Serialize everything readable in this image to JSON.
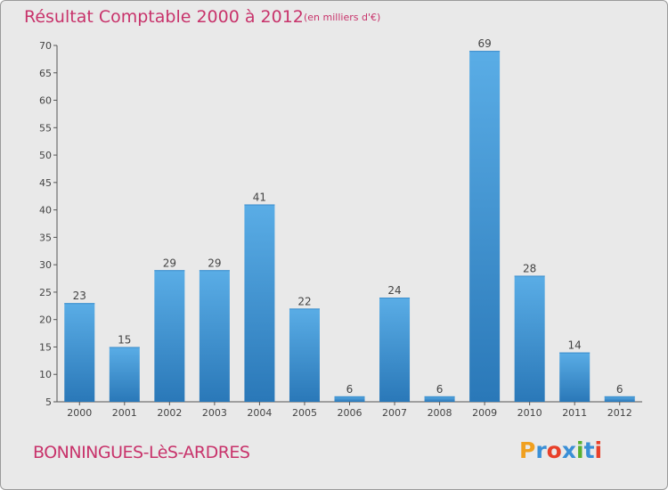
{
  "title": "Résultat Comptable 2000 à 2012",
  "subtitle": "(en milliers d'€)",
  "city": "BONNINGUES-LèS-ARDRES",
  "logo": {
    "letters": [
      "P",
      "r",
      "o",
      "x",
      "i",
      "t",
      "i"
    ],
    "colors": [
      "#f0a020",
      "#3a8fd6",
      "#e8402a",
      "#3a8fd6",
      "#58b030",
      "#3a8fd6",
      "#e8402a"
    ]
  },
  "colors": {
    "title": "#c8336b",
    "bar_top": "#5aade6",
    "bar_bottom": "#2a78b8",
    "background": "#e9e9e9",
    "axis": "#555555"
  },
  "chart_data": {
    "type": "bar",
    "title": "Résultat Comptable 2000 à 2012",
    "subtitle": "(en milliers d'€)",
    "categories": [
      "2000",
      "2001",
      "2002",
      "2003",
      "2004",
      "2005",
      "2006",
      "2007",
      "2008",
      "2009",
      "2010",
      "2011",
      "2012"
    ],
    "values": [
      23,
      15,
      29,
      29,
      41,
      22,
      6,
      24,
      6,
      69,
      28,
      14,
      6
    ],
    "xlabel": "",
    "ylabel": "",
    "ylim": [
      5,
      70
    ],
    "yticks": [
      5,
      10,
      15,
      20,
      25,
      30,
      35,
      40,
      45,
      50,
      55,
      60,
      65,
      70
    ],
    "grid": false,
    "data_labels": true
  }
}
